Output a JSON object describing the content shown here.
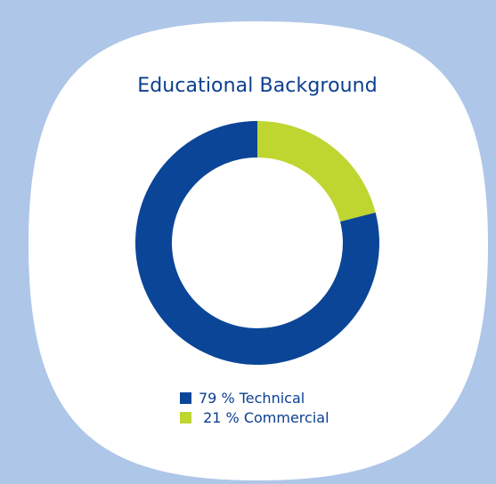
{
  "chart_data": {
    "type": "pie",
    "title": "Educational Background",
    "categories": [
      "Technical",
      "Commercial"
    ],
    "values": [
      79,
      21
    ],
    "legend_labels": [
      "79 % Technical",
      " 21 % Commercial"
    ],
    "colors": [
      "#0b4597",
      "#bed62f"
    ],
    "legend_position": "bottom"
  },
  "colors": {
    "background": "#aec6e8",
    "card": "#ffffff",
    "title": "#0b3f8f"
  }
}
